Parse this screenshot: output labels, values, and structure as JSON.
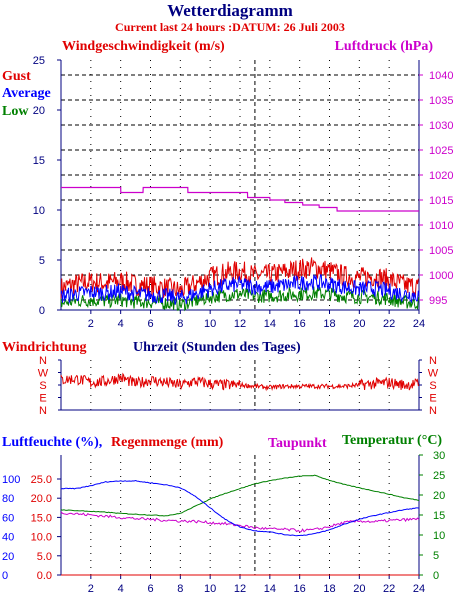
{
  "title": "Wetterdiagramm",
  "subtitle": "Current last 24 hours :DATUM: 26 Juli 2003",
  "colors": {
    "navy": "#000080",
    "red": "#e00000",
    "blue": "#0000ff",
    "green": "#008000",
    "magenta": "#cc00cc",
    "grid": "#000000"
  },
  "chart_data": [
    {
      "type": "line",
      "panel": "wind-pressure",
      "left_axis_label": "Windgeschwindigkeit (m/s)",
      "right_axis_label": "Luftdruck (hPa)",
      "x_axis_label": "Uhrzeit (Stunden des Tages)",
      "xlim": [
        0,
        24
      ],
      "x_ticks": [
        "2",
        "4",
        "6",
        "8",
        "10",
        "12",
        "14",
        "16",
        "18",
        "20",
        "22",
        "24"
      ],
      "ylim_left": [
        0,
        25
      ],
      "y_ticks_left": [
        "0",
        "5",
        "10",
        "15",
        "20",
        "25"
      ],
      "ylim_right": [
        993,
        1043
      ],
      "y_ticks_right": [
        "995",
        "1000",
        "1005",
        "1010",
        "1015",
        "1020",
        "1025",
        "1030",
        "1035",
        "1040"
      ],
      "legend": [
        "Gust",
        "Average",
        "Low"
      ],
      "grid": true,
      "series": [
        {
          "name": "Gust",
          "color": "#e00000",
          "axis": "left",
          "x": [
            0,
            1,
            2,
            3,
            4,
            5,
            6,
            7,
            8,
            9,
            10,
            11,
            12,
            13,
            14,
            15,
            16,
            17,
            18,
            19,
            20,
            21,
            22,
            23,
            24
          ],
          "y": [
            2.2,
            2.6,
            2.8,
            2.7,
            2.9,
            2.5,
            2.4,
            2.2,
            1.9,
            2.6,
            3.3,
            3.7,
            3.9,
            3.4,
            3.5,
            3.8,
            4.1,
            4.3,
            3.9,
            3.4,
            3.2,
            3.4,
            3.0,
            2.5,
            2.3
          ]
        },
        {
          "name": "Average",
          "color": "#0000ff",
          "axis": "left",
          "x": [
            0,
            1,
            2,
            3,
            4,
            5,
            6,
            7,
            8,
            9,
            10,
            11,
            12,
            13,
            14,
            15,
            16,
            17,
            18,
            19,
            20,
            21,
            22,
            23,
            24
          ],
          "y": [
            1.4,
            1.6,
            1.8,
            1.7,
            1.9,
            1.6,
            1.5,
            1.4,
            1.2,
            1.6,
            2.1,
            2.4,
            2.6,
            2.3,
            2.3,
            2.5,
            2.7,
            2.8,
            2.6,
            2.3,
            2.1,
            2.2,
            1.9,
            1.6,
            1.5
          ]
        },
        {
          "name": "Low",
          "color": "#008000",
          "axis": "left",
          "x": [
            0,
            1,
            2,
            3,
            4,
            5,
            6,
            7,
            8,
            9,
            10,
            11,
            12,
            13,
            14,
            15,
            16,
            17,
            18,
            19,
            20,
            21,
            22,
            23,
            24
          ],
          "y": [
            0.7,
            0.9,
            1.0,
            0.9,
            1.0,
            0.8,
            0.8,
            0.7,
            0.5,
            0.9,
            1.3,
            1.5,
            1.6,
            1.4,
            1.4,
            1.5,
            1.6,
            1.7,
            1.6,
            1.4,
            1.3,
            1.3,
            1.1,
            0.8,
            0.7
          ]
        },
        {
          "name": "Luftdruck",
          "color": "#cc00cc",
          "axis": "right",
          "x": [
            0,
            2,
            4,
            4.01,
            5.5,
            5.51,
            8.5,
            8.51,
            12.5,
            12.51,
            14,
            14.01,
            15,
            15.01,
            16.2,
            16.21,
            17.3,
            17.31,
            18.5,
            18.51,
            24
          ],
          "y": [
            1017.5,
            1017.5,
            1017.5,
            1016.5,
            1016.5,
            1017.5,
            1017.5,
            1016.5,
            1016.5,
            1015.5,
            1015.5,
            1015,
            1015,
            1014.5,
            1014.5,
            1014,
            1014,
            1013.5,
            1013.5,
            1012.8,
            1012.8
          ]
        }
      ]
    },
    {
      "type": "line",
      "panel": "wind-direction",
      "left_axis_label": "Windrichtung",
      "xlim": [
        0,
        24
      ],
      "y_ticks": [
        "N",
        "W",
        "S",
        "E",
        "N"
      ],
      "ylim": [
        0,
        4
      ],
      "series": [
        {
          "name": "Windrichtung",
          "color": "#e00000",
          "x": [
            0,
            1,
            2,
            3,
            4,
            5,
            6,
            7,
            8,
            9,
            10,
            11,
            12,
            13,
            14,
            15,
            16,
            17,
            18,
            19,
            20,
            21,
            22,
            23,
            24
          ],
          "y": [
            2.4,
            2.5,
            2.2,
            2.3,
            2.6,
            2.1,
            2.4,
            2.2,
            2.0,
            2.3,
            2.1,
            2.0,
            2.0,
            1.9,
            1.8,
            1.9,
            1.9,
            1.9,
            1.9,
            1.9,
            2.0,
            2.1,
            2.2,
            2.0,
            2.1
          ]
        }
      ]
    },
    {
      "type": "line",
      "panel": "humidity-temperature",
      "legend": [
        "Luftfeuchte (%),",
        "Regenmenge (mm)",
        "Taupunkt",
        "Temperatur (°C)"
      ],
      "xlim": [
        0,
        24
      ],
      "x_ticks": [
        "2",
        "4",
        "6",
        "8",
        "10",
        "12",
        "14",
        "16",
        "18",
        "20",
        "22",
        "24"
      ],
      "y_ticks_humidity": [
        "0",
        "20",
        "40",
        "60",
        "80",
        "100"
      ],
      "ylim_humidity": [
        0,
        125
      ],
      "y_ticks_rain": [
        "0.0",
        "5.0",
        "10.0",
        "15.0",
        "20.0",
        "25.0"
      ],
      "ylim_rain": [
        0,
        31.25
      ],
      "y_ticks_temp": [
        "0",
        "5",
        "10",
        "15",
        "20",
        "25",
        "30"
      ],
      "ylim_temp": [
        0,
        30
      ],
      "series": [
        {
          "name": "Luftfeuchte",
          "color": "#0000ff",
          "x": [
            0,
            1,
            2,
            3,
            4,
            5,
            6,
            7,
            8,
            9,
            10,
            11,
            12,
            13,
            14,
            15,
            16,
            17,
            18,
            19,
            20,
            21,
            22,
            23,
            24
          ],
          "y": [
            90,
            90,
            93,
            97,
            98,
            98,
            96,
            94,
            91,
            82,
            70,
            58,
            50,
            46,
            45,
            42,
            41,
            43,
            47,
            53,
            58,
            62,
            65,
            68,
            70
          ]
        },
        {
          "name": "Taupunkt",
          "color": "#cc00cc",
          "x": [
            0,
            1,
            2,
            3,
            4,
            5,
            6,
            7,
            8,
            9,
            10,
            11,
            12,
            13,
            14,
            15,
            16,
            17,
            18,
            19,
            20,
            21,
            22,
            23,
            24
          ],
          "y": [
            15.6,
            15.3,
            15.0,
            14.7,
            14.4,
            14.1,
            13.9,
            13.7,
            13.5,
            13.4,
            13.1,
            12.8,
            12.4,
            11.8,
            11.5,
            11.4,
            11.1,
            11.3,
            12.1,
            13.1,
            13.5,
            13.3,
            13.6,
            13.8,
            14.0
          ]
        },
        {
          "name": "Temperatur",
          "color": "#008000",
          "x": [
            0,
            1,
            2,
            3,
            4,
            5,
            6,
            7,
            8,
            9,
            10,
            11,
            12,
            13,
            14,
            15,
            16,
            17,
            18,
            19,
            20,
            21,
            22,
            23,
            24
          ],
          "y": [
            16.3,
            16.1,
            15.9,
            15.7,
            15.4,
            15.2,
            15.0,
            14.8,
            15.4,
            17.2,
            19.0,
            20.4,
            21.6,
            22.8,
            23.6,
            24.2,
            24.7,
            24.9,
            23.7,
            22.6,
            21.8,
            21.0,
            20.2,
            19.3,
            18.7
          ]
        },
        {
          "name": "Regenmenge",
          "color": "#e00000",
          "x": [
            0,
            24
          ],
          "y": [
            0,
            0
          ]
        }
      ]
    }
  ]
}
